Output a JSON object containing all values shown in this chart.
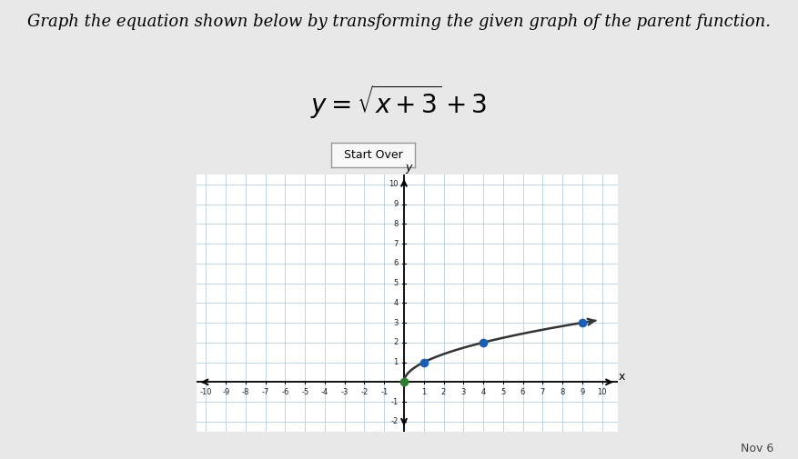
{
  "title": "Graph the equation shown below by transforming the given graph of the parent function.",
  "equation_latex": "$y = \\sqrt{x+3}+3$",
  "button_text": "Start Over",
  "bg_color": "#e8e8e8",
  "grid_bg": "#ffffff",
  "xlim": [
    -10.5,
    10.8
  ],
  "ylim": [
    -2.5,
    10.5
  ],
  "xticks": [
    -10,
    -9,
    -8,
    -7,
    -6,
    -5,
    -4,
    -3,
    -2,
    -1,
    1,
    2,
    3,
    4,
    5,
    6,
    7,
    8,
    9,
    10
  ],
  "yticks": [
    -2,
    -1,
    1,
    2,
    3,
    4,
    5,
    6,
    7,
    8,
    9,
    10
  ],
  "curve_color": "#333333",
  "dot_color": "#1a5fb4",
  "origin_dot_color": "#2e7d32",
  "key_points_x": [
    0,
    1,
    4,
    9
  ],
  "key_points_y": [
    0,
    1,
    2,
    3
  ],
  "note_text": "Nov 6",
  "grid_color": "#b8cfe0",
  "title_fontsize": 13,
  "eq_fontsize": 20
}
